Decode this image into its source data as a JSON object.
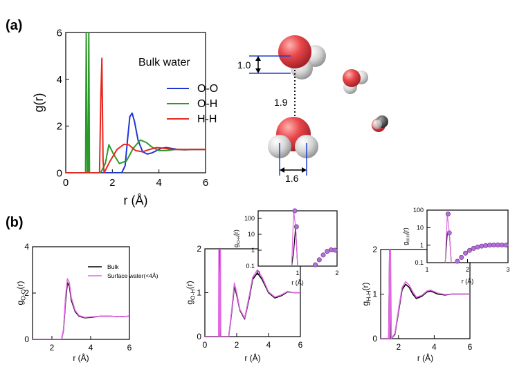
{
  "panel_labels": {
    "a": "(a)",
    "b": "(b)"
  },
  "molecule_annotations": {
    "oh_distance": "1.0",
    "hbond_distance": "1.9",
    "molecule_width": "1.6"
  },
  "colors": {
    "oxygen": "#e8474b",
    "hydrogen": "#cfcfcf",
    "oo": "#1f35d6",
    "oh": "#2a9a2a",
    "hh": "#e8261e",
    "bulk": "#000000",
    "surface": "#e266e6",
    "marker_fill": "#b36fd6",
    "dimension_line": "#1f3fcf"
  },
  "chart_data": [
    {
      "id": "a",
      "type": "line",
      "title": "",
      "annotation": "Bulk water",
      "xlabel": "r (Å)",
      "ylabel": "g(r)",
      "xlim": [
        0,
        6
      ],
      "ylim": [
        0,
        6
      ],
      "xticks": [
        "0",
        "2",
        "4",
        "6"
      ],
      "yticks": [
        "0",
        "2",
        "4",
        "6"
      ],
      "grid": false,
      "legend": "right",
      "series": [
        {
          "name": "O-O",
          "color": "#1f35d6",
          "x": [
            0,
            2.4,
            2.55,
            2.65,
            2.75,
            2.85,
            2.95,
            3.1,
            3.3,
            3.5,
            3.7,
            3.9,
            4.1,
            4.3,
            4.5,
            4.8,
            5.1,
            5.5,
            6.0
          ],
          "y": [
            0,
            0,
            0.3,
            1.4,
            2.4,
            2.55,
            2.2,
            1.4,
            0.9,
            0.8,
            0.85,
            0.95,
            1.05,
            1.08,
            1.05,
            1.0,
            0.98,
            1.0,
            1.0
          ]
        },
        {
          "name": "O-H",
          "color": "#2a9a2a",
          "x": [
            0,
            0.85,
            0.88,
            0.92,
            0.96,
            0.99,
            1.02,
            1.06,
            1.5,
            1.7,
            1.85,
            2.05,
            2.3,
            2.6,
            2.9,
            3.2,
            3.45,
            3.7,
            4.0,
            4.3,
            4.7,
            5.2,
            6.0
          ],
          "y": [
            0,
            0,
            6.0,
            0,
            0,
            6.0,
            0,
            0,
            0,
            0.4,
            1.2,
            0.8,
            0.4,
            0.5,
            1.05,
            1.4,
            1.3,
            1.1,
            0.95,
            0.95,
            1.0,
            1.0,
            1.0
          ]
        },
        {
          "name": "H-H",
          "color": "#e8261e",
          "x": [
            0,
            1.45,
            1.5,
            1.55,
            1.6,
            1.65,
            1.9,
            2.2,
            2.5,
            2.7,
            3.0,
            3.3,
            3.6,
            3.9,
            4.2,
            4.6,
            5.0,
            5.5,
            6.0
          ],
          "y": [
            0,
            0,
            3.0,
            4.9,
            0.5,
            0.0,
            0.5,
            1.0,
            1.22,
            1.2,
            0.95,
            0.9,
            1.0,
            1.08,
            1.05,
            1.0,
            1.0,
            1.0,
            1.0
          ]
        }
      ]
    },
    {
      "id": "b1",
      "type": "line",
      "title": "",
      "xlabel": "r (Å)",
      "ylabel": "gO-O(r)",
      "xlim": [
        1,
        6
      ],
      "ylim": [
        0,
        4
      ],
      "xticks": [
        "2",
        "4",
        "6"
      ],
      "yticks": [
        "0",
        "2",
        "4"
      ],
      "grid": false,
      "legend": "top-right",
      "series": [
        {
          "name": "Bulk",
          "color": "#000000",
          "x": [
            1,
            2.5,
            2.6,
            2.7,
            2.8,
            2.9,
            3.0,
            3.2,
            3.4,
            3.7,
            4.0,
            4.5,
            5.0,
            5.5,
            6.0
          ],
          "y": [
            0,
            0,
            0.4,
            1.6,
            2.45,
            2.3,
            1.7,
            1.2,
            1.0,
            0.93,
            0.95,
            1.0,
            1.0,
            0.98,
            1.0
          ]
        },
        {
          "name": "Surface water(<4Å)",
          "color": "#e266e6",
          "x": [
            1,
            2.5,
            2.6,
            2.7,
            2.8,
            2.9,
            3.0,
            3.2,
            3.4,
            3.7,
            4.0,
            4.5,
            5.0,
            5.5,
            6.0
          ],
          "y": [
            0,
            0,
            0.45,
            1.8,
            2.62,
            2.45,
            1.8,
            1.25,
            1.03,
            0.95,
            0.97,
            1.0,
            1.0,
            0.98,
            1.0
          ]
        }
      ]
    },
    {
      "id": "b2",
      "type": "line",
      "title": "",
      "xlabel": "r (Å)",
      "ylabel": "gO-H(r)",
      "xlim": [
        0,
        6
      ],
      "ylim": [
        0,
        2
      ],
      "xticks": [
        "0",
        "2",
        "4",
        "6"
      ],
      "yticks": [
        "0",
        "1",
        "2"
      ],
      "grid": false,
      "series": [
        {
          "name": "Bulk",
          "color": "#000000",
          "x": [
            0,
            0.88,
            0.9,
            0.95,
            1.0,
            1.02,
            1.5,
            1.7,
            1.85,
            2.0,
            2.2,
            2.5,
            2.8,
            3.0,
            3.3,
            3.6,
            4.0,
            4.4,
            4.8,
            5.2,
            5.6,
            6.0
          ],
          "y": [
            0,
            0,
            2.0,
            0,
            0,
            0,
            0,
            0.6,
            1.15,
            0.95,
            0.6,
            0.4,
            0.9,
            1.3,
            1.45,
            1.3,
            1.0,
            0.88,
            0.93,
            1.02,
            1.0,
            1.0
          ]
        },
        {
          "name": "Surface water(<4Å)",
          "color": "#e266e6",
          "x": [
            0,
            0.86,
            0.88,
            0.92,
            0.98,
            1.0,
            1.5,
            1.7,
            1.85,
            2.0,
            2.2,
            2.5,
            2.8,
            3.0,
            3.3,
            3.6,
            4.0,
            4.4,
            4.8,
            5.2,
            5.6,
            6.0
          ],
          "y": [
            0,
            0,
            2.0,
            0,
            2.0,
            0,
            0,
            0.65,
            1.22,
            1.0,
            0.62,
            0.42,
            0.95,
            1.35,
            1.52,
            1.35,
            1.02,
            0.9,
            0.95,
            1.03,
            1.0,
            1.0
          ]
        }
      ]
    },
    {
      "id": "b2-inset",
      "type": "line",
      "title": "",
      "xlabel": "r (Å)",
      "ylabel": "gO-H(r)",
      "xlim": [
        0,
        2
      ],
      "ylim": [
        0.1,
        300
      ],
      "yscale": "log",
      "xticks": [
        "0",
        "1",
        "2"
      ],
      "yticks": [
        "0.1",
        "1",
        "10",
        "100"
      ],
      "grid": false,
      "series": [
        {
          "name": "Bulk",
          "color": "#000000",
          "x": [
            0.85,
            0.9,
            0.95,
            1.0
          ],
          "y": [
            0.1,
            0.8,
            30,
            0.1
          ]
        },
        {
          "name": "Surface water(<4Å)",
          "color": "#e266e6",
          "markers": true,
          "x": [
            0.85,
            0.9,
            0.95,
            1.0
          ],
          "y": [
            0.1,
            300,
            30,
            0.1
          ],
          "marker_x": [
            0.93,
            0.97,
            1.45,
            1.55,
            1.65,
            1.75,
            1.85,
            1.95
          ],
          "marker_y": [
            300,
            30,
            0.12,
            0.25,
            0.5,
            0.85,
            1.05,
            1.0
          ]
        }
      ]
    },
    {
      "id": "b3",
      "type": "line",
      "title": "",
      "xlabel": "r (Å)",
      "ylabel": "gH-H(r)",
      "xlim": [
        1,
        6
      ],
      "ylim": [
        0,
        2
      ],
      "xticks": [
        "2",
        "4",
        "6"
      ],
      "yticks": [
        "0",
        "1",
        "2"
      ],
      "grid": false,
      "series": [
        {
          "name": "Bulk",
          "color": "#000000",
          "x": [
            1,
            1.45,
            1.5,
            1.55,
            1.6,
            1.8,
            2.0,
            2.2,
            2.4,
            2.6,
            2.8,
            3.0,
            3.3,
            3.6,
            3.8,
            4.2,
            4.6,
            5.0,
            5.5,
            6.0
          ],
          "y": [
            0,
            0,
            2.0,
            0,
            0,
            0.1,
            0.6,
            1.1,
            1.22,
            1.15,
            1.0,
            0.9,
            0.95,
            1.05,
            1.07,
            1.0,
            0.98,
            1.0,
            1.0,
            1.0
          ]
        },
        {
          "name": "Surface water(<4Å)",
          "color": "#e266e6",
          "x": [
            1,
            1.45,
            1.5,
            1.52,
            1.55,
            1.6,
            1.8,
            2.0,
            2.2,
            2.4,
            2.6,
            2.8,
            3.0,
            3.3,
            3.6,
            3.8,
            4.2,
            4.6,
            5.0,
            5.5,
            6.0
          ],
          "y": [
            0,
            0,
            2.0,
            0,
            2.0,
            0,
            0.12,
            0.65,
            1.15,
            1.28,
            1.2,
            1.05,
            0.93,
            0.97,
            1.07,
            1.09,
            1.02,
            0.99,
            1.0,
            1.0,
            1.0
          ]
        }
      ]
    },
    {
      "id": "b3-inset",
      "type": "line",
      "title": "",
      "xlabel": "r (Å)",
      "ylabel": "gH-H(r)",
      "xlim": [
        1,
        3
      ],
      "ylim": [
        0.1,
        100
      ],
      "yscale": "log",
      "xticks": [
        "1",
        "2",
        "3"
      ],
      "yticks": [
        "0.1",
        "1",
        "10",
        "100"
      ],
      "grid": false,
      "series": [
        {
          "name": "Bulk",
          "color": "#000000",
          "x": [
            1.45,
            1.5,
            1.55,
            1.6
          ],
          "y": [
            0.1,
            5,
            5,
            0.1
          ]
        },
        {
          "name": "Surface water(<4Å)",
          "color": "#e266e6",
          "markers": true,
          "x": [
            1.45,
            1.5,
            1.55,
            1.6
          ],
          "y": [
            0.1,
            60,
            5,
            0.1
          ],
          "marker_x": [
            1.52,
            1.55,
            1.75,
            1.85,
            1.95,
            2.05,
            2.15,
            2.25,
            2.35,
            2.45,
            2.55,
            2.65,
            2.75,
            2.85,
            2.95
          ],
          "marker_y": [
            60,
            5,
            0.12,
            0.2,
            0.35,
            0.5,
            0.65,
            0.78,
            0.88,
            0.95,
            1.0,
            1.02,
            1.03,
            1.02,
            1.0
          ]
        }
      ]
    }
  ]
}
